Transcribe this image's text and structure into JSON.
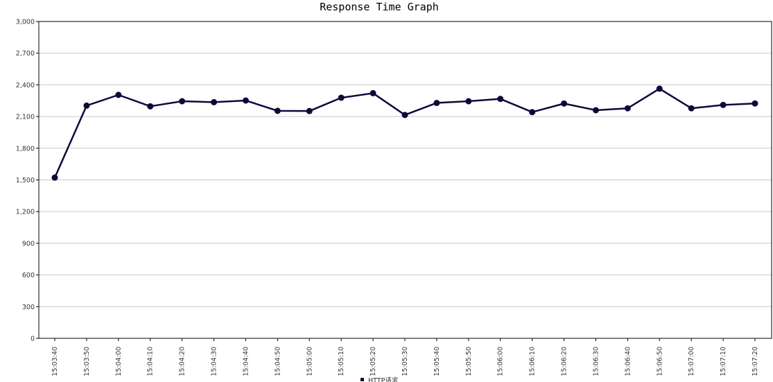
{
  "chart_data": {
    "type": "line",
    "title": "Response Time Graph",
    "xlabel": "",
    "ylabel": "",
    "ylim": [
      0,
      3000
    ],
    "yticks": [
      "0",
      "300",
      "600",
      "900",
      "1,200",
      "1,500",
      "1,800",
      "2,100",
      "2,400",
      "2,700",
      "3,000"
    ],
    "ytick_values": [
      0,
      300,
      600,
      900,
      1200,
      1500,
      1800,
      2100,
      2400,
      2700,
      3000
    ],
    "grid": true,
    "legend_position": "bottom",
    "categories": [
      "15:03:40",
      "15:03:50",
      "15:04:00",
      "15:04:10",
      "15:04:20",
      "15:04:30",
      "15:04:40",
      "15:04:50",
      "15:05:00",
      "15:05:10",
      "15:05:20",
      "15:05:30",
      "15:05:40",
      "15:05:50",
      "15:06:00",
      "15:06:10",
      "15:06:20",
      "15:06:30",
      "15:06:40",
      "15:06:50",
      "15:07:00",
      "15:07:10",
      "15:07:20"
    ],
    "series": [
      {
        "name": "HTTP请求",
        "color": "#0a0a3a",
        "values": [
          1522,
          2203,
          2305,
          2197,
          2245,
          2236,
          2252,
          2154,
          2152,
          2278,
          2321,
          2115,
          2229,
          2245,
          2267,
          2142,
          2223,
          2160,
          2178,
          2364,
          2178,
          2210,
          2224
        ]
      }
    ]
  }
}
